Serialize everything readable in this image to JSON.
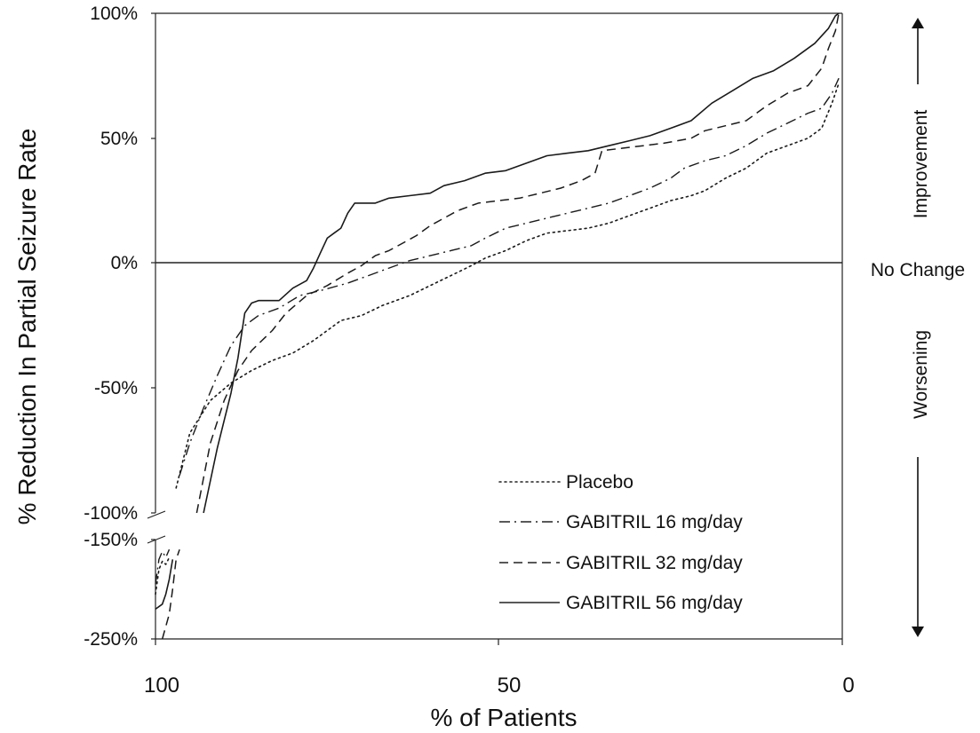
{
  "chart_data": {
    "type": "line",
    "xlabel": "% of Patients",
    "ylabel": "% Reduction In Partial Seizure Rate",
    "x_reversed": true,
    "xlim": [
      100,
      0
    ],
    "x_ticks": [
      {
        "value": 100,
        "label": "100"
      },
      {
        "value": 50,
        "label": "50"
      },
      {
        "value": 0,
        "label": "0"
      }
    ],
    "y_scale": "broken",
    "y_segments": [
      {
        "range": [
          -100,
          100
        ]
      },
      {
        "range": [
          -250,
          -150
        ]
      }
    ],
    "y_ticks": [
      {
        "value": 100,
        "label": "100%"
      },
      {
        "value": 50,
        "label": "50%"
      },
      {
        "value": 0,
        "label": "0%"
      },
      {
        "value": -50,
        "label": "-50%"
      },
      {
        "value": -100,
        "label": "-100%"
      },
      {
        "value": -150,
        "label": "-150%"
      },
      {
        "value": -250,
        "label": "-250%"
      }
    ],
    "zero_line_label": "No Change",
    "right_labels": {
      "up": "Improvement",
      "down": "Worsening"
    },
    "legend_position": "lower-right",
    "series": [
      {
        "name": "Placebo",
        "dash": "dotted",
        "lower": [
          [
            100,
            -205
          ],
          [
            99.5,
            -180
          ],
          [
            99,
            -172
          ],
          [
            98.5,
            -175
          ],
          [
            98,
            -168
          ]
        ],
        "upper": [
          [
            97,
            -90
          ],
          [
            95,
            -68
          ],
          [
            92,
            -55
          ],
          [
            89,
            -48
          ],
          [
            86,
            -43
          ],
          [
            83,
            -39
          ],
          [
            80,
            -36
          ],
          [
            77,
            -31
          ],
          [
            73,
            -23
          ],
          [
            70,
            -21
          ],
          [
            67,
            -17
          ],
          [
            63,
            -13
          ],
          [
            60,
            -9
          ],
          [
            57,
            -5
          ],
          [
            54,
            -1
          ],
          [
            52,
            2
          ],
          [
            49,
            5
          ],
          [
            46,
            9
          ],
          [
            43,
            12
          ],
          [
            40,
            13
          ],
          [
            37,
            14
          ],
          [
            34,
            16
          ],
          [
            31,
            19
          ],
          [
            28,
            22
          ],
          [
            25,
            25
          ],
          [
            22,
            27
          ],
          [
            20,
            29
          ],
          [
            17,
            34
          ],
          [
            14,
            38
          ],
          [
            11,
            44
          ],
          [
            8,
            47
          ],
          [
            5,
            50
          ],
          [
            3,
            54
          ],
          [
            1.5,
            64
          ],
          [
            0.5,
            72
          ]
        ]
      },
      {
        "name": "GABITRIL 16 mg/day",
        "dash": "dash-dot",
        "lower": [
          [
            100,
            -195
          ],
          [
            99.5,
            -170
          ],
          [
            99,
            -162
          ],
          [
            98.5,
            -168
          ],
          [
            98,
            -160
          ]
        ],
        "upper": [
          [
            96.5,
            -85
          ],
          [
            95,
            -72
          ],
          [
            93,
            -58
          ],
          [
            91,
            -45
          ],
          [
            89,
            -33
          ],
          [
            87,
            -25
          ],
          [
            85,
            -21
          ],
          [
            82,
            -18
          ],
          [
            79,
            -13
          ],
          [
            76,
            -11
          ],
          [
            72,
            -8
          ],
          [
            69,
            -5
          ],
          [
            66,
            -2
          ],
          [
            63,
            1
          ],
          [
            60,
            3
          ],
          [
            57,
            5
          ],
          [
            54,
            7
          ],
          [
            52,
            10
          ],
          [
            49,
            14
          ],
          [
            46,
            16
          ],
          [
            43,
            18
          ],
          [
            40,
            20
          ],
          [
            37,
            22
          ],
          [
            34,
            24
          ],
          [
            31,
            27
          ],
          [
            28,
            30
          ],
          [
            25,
            34
          ],
          [
            23,
            38
          ],
          [
            20,
            41
          ],
          [
            17,
            43
          ],
          [
            14,
            47
          ],
          [
            11,
            52
          ],
          [
            8,
            56
          ],
          [
            5,
            60
          ],
          [
            3,
            62
          ],
          [
            1.5,
            68
          ],
          [
            0.5,
            74
          ]
        ]
      },
      {
        "name": "GABITRIL 32 mg/day",
        "dash": "dashed",
        "lower": [
          [
            99,
            -250
          ],
          [
            98,
            -225
          ],
          [
            97.5,
            -200
          ],
          [
            97,
            -170
          ],
          [
            96.5,
            -160
          ]
        ],
        "upper": [
          [
            94,
            -100
          ],
          [
            92,
            -72
          ],
          [
            90,
            -55
          ],
          [
            88,
            -43
          ],
          [
            86,
            -35
          ],
          [
            83,
            -27
          ],
          [
            81,
            -20
          ],
          [
            78,
            -13
          ],
          [
            75,
            -9
          ],
          [
            72,
            -4
          ],
          [
            70,
            -1
          ],
          [
            68,
            3
          ],
          [
            66,
            5
          ],
          [
            64,
            8
          ],
          [
            62,
            11
          ],
          [
            60,
            15
          ],
          [
            58,
            18
          ],
          [
            56,
            21
          ],
          [
            53,
            24
          ],
          [
            50,
            25
          ],
          [
            47,
            26
          ],
          [
            44,
            28
          ],
          [
            41,
            30
          ],
          [
            38,
            33
          ],
          [
            36,
            36
          ],
          [
            35,
            45
          ],
          [
            32,
            46
          ],
          [
            29,
            47
          ],
          [
            26,
            48
          ],
          [
            24,
            49
          ],
          [
            22,
            50
          ],
          [
            20,
            53
          ],
          [
            17,
            55
          ],
          [
            14,
            57
          ],
          [
            11,
            63
          ],
          [
            8,
            68
          ],
          [
            5,
            71
          ],
          [
            3,
            78
          ],
          [
            2,
            86
          ],
          [
            1,
            93
          ],
          [
            0.5,
            100
          ]
        ]
      },
      {
        "name": "GABITRIL 56 mg/day",
        "dash": "solid",
        "lower": [
          [
            100,
            -220
          ],
          [
            99,
            -215
          ],
          [
            98.5,
            -205
          ],
          [
            98,
            -190
          ],
          [
            97.5,
            -170
          ]
        ],
        "upper": [
          [
            93,
            -100
          ],
          [
            91,
            -74
          ],
          [
            89,
            -52
          ],
          [
            88,
            -38
          ],
          [
            87,
            -20
          ],
          [
            86,
            -16
          ],
          [
            85,
            -15
          ],
          [
            82,
            -15
          ],
          [
            80,
            -10
          ],
          [
            78,
            -7
          ],
          [
            77,
            -2
          ],
          [
            76,
            4
          ],
          [
            75,
            10
          ],
          [
            74,
            12
          ],
          [
            73,
            14
          ],
          [
            72,
            20
          ],
          [
            71,
            24
          ],
          [
            68,
            24
          ],
          [
            66,
            26
          ],
          [
            63,
            27
          ],
          [
            60,
            28
          ],
          [
            58,
            31
          ],
          [
            55,
            33
          ],
          [
            52,
            36
          ],
          [
            49,
            37
          ],
          [
            46,
            40
          ],
          [
            43,
            43
          ],
          [
            40,
            44
          ],
          [
            37,
            45
          ],
          [
            34,
            47
          ],
          [
            31,
            49
          ],
          [
            28,
            51
          ],
          [
            25,
            54
          ],
          [
            22,
            57
          ],
          [
            19,
            64
          ],
          [
            16,
            69
          ],
          [
            13,
            74
          ],
          [
            10,
            77
          ],
          [
            7,
            82
          ],
          [
            4,
            88
          ],
          [
            2,
            94
          ],
          [
            1,
            99
          ],
          [
            0.5,
            100
          ]
        ]
      }
    ]
  }
}
